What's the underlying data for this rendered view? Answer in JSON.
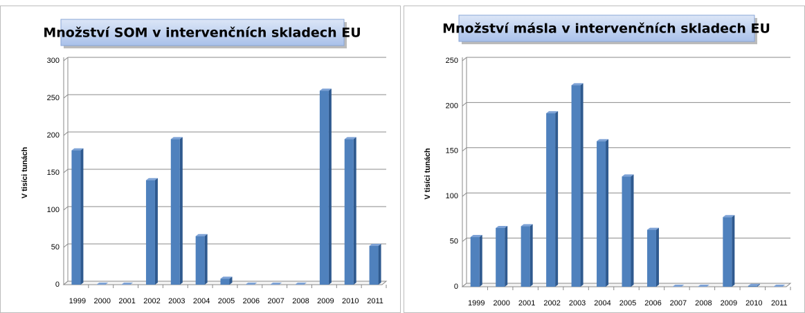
{
  "chart_data": [
    {
      "type": "bar",
      "title": "Množství SOM v intervenčních skladech EU",
      "y_label": "V tisíci tunách",
      "categories": [
        "1999",
        "2000",
        "2001",
        "2002",
        "2003",
        "2004",
        "2005",
        "2006",
        "2007",
        "2008",
        "2009",
        "2010",
        "2011"
      ],
      "values": [
        180,
        0,
        0,
        140,
        195,
        65,
        8,
        0,
        0,
        0,
        260,
        195,
        52
      ],
      "color": "#4f81bd",
      "ylim": [
        0,
        300
      ],
      "yticks": [
        0,
        50,
        100,
        150,
        200,
        250,
        300
      ],
      "grid": true
    },
    {
      "type": "bar",
      "title": "Množství másla v intervenčních skladech EU",
      "y_label": "V tisíci tunách",
      "categories": [
        "1999",
        "2000",
        "2001",
        "2002",
        "2003",
        "2004",
        "2005",
        "2006",
        "2007",
        "2008",
        "2009",
        "2010",
        "2011"
      ],
      "values": [
        55,
        65,
        67,
        192,
        223,
        161,
        122,
        63,
        0,
        0,
        77,
        1,
        0
      ],
      "color": "#4f81bd",
      "ylim": [
        0,
        250
      ],
      "yticks": [
        0,
        50,
        100,
        150,
        200,
        250
      ],
      "grid": true
    }
  ]
}
